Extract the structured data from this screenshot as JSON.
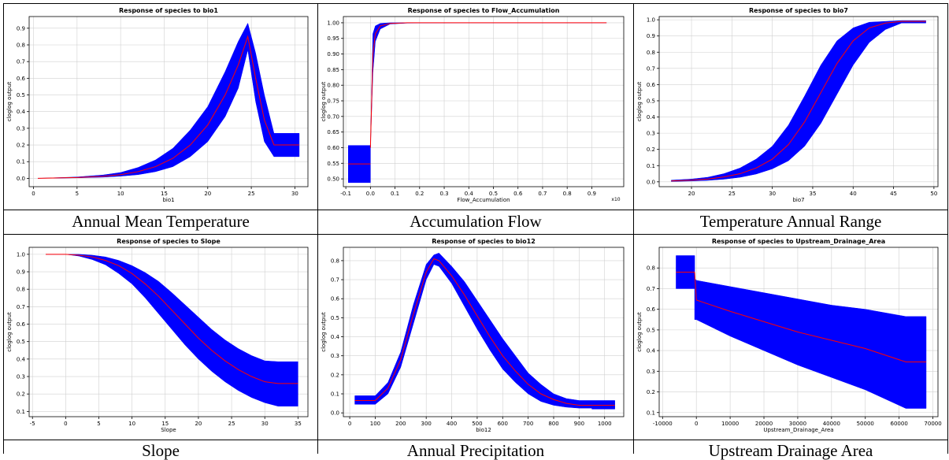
{
  "colors": {
    "band": "#0000ff",
    "line": "#ff0000",
    "grid": "#d0d0d0"
  },
  "panels": [
    {
      "caption": "Annual Mean Temperature",
      "chart_data": {
        "type": "area",
        "title": "Response of species to bio1",
        "xlabel": "bio1",
        "ylabel": "cloglog output",
        "xlim": [
          -0.5,
          31.5
        ],
        "ylim": [
          -0.05,
          0.97
        ],
        "xticks": [
          0,
          5,
          10,
          15,
          20,
          25,
          30
        ],
        "yticks": [
          0,
          0.1,
          0.2,
          0.3,
          0.4,
          0.5,
          0.6,
          0.7,
          0.8,
          0.9
        ],
        "yticklabels": [
          "0.0",
          "0.1",
          "0.2",
          "0.3",
          "0.4",
          "0.5",
          "0.6",
          "0.7",
          "0.8",
          "0.9"
        ],
        "series": [
          {
            "x": [
              0.5,
              5,
              8,
              10,
              12,
              14,
              16,
              18,
              20,
              22,
              23.5,
              24.6,
              25.5,
              26.5,
              27.6
            ],
            "mean": [
              0.0,
              0.005,
              0.012,
              0.022,
              0.04,
              0.07,
              0.12,
              0.2,
              0.32,
              0.5,
              0.68,
              0.85,
              0.6,
              0.35,
              0.2
            ],
            "upper": [
              0.0,
              0.008,
              0.02,
              0.035,
              0.065,
              0.11,
              0.18,
              0.29,
              0.43,
              0.64,
              0.82,
              0.93,
              0.75,
              0.5,
              0.27
            ],
            "lower": [
              0.0,
              0.003,
              0.007,
              0.013,
              0.022,
              0.04,
              0.07,
              0.13,
              0.22,
              0.37,
              0.54,
              0.77,
              0.46,
              0.22,
              0.13
            ]
          },
          {
            "x": [
              27.6,
              30.5
            ],
            "mean": [
              0.2,
              0.2
            ],
            "upper": [
              0.27,
              0.27
            ],
            "lower": [
              0.13,
              0.13
            ]
          }
        ]
      }
    },
    {
      "caption": "Accumulation Flow",
      "chart_data": {
        "type": "area",
        "title": "Response of species to Flow_Accumulation",
        "xlabel": "Flow_Accumulation",
        "ylabel": "cloglog output",
        "xmultiplier": "x10",
        "xlim": [
          -0.11,
          1.03
        ],
        "ylim": [
          0.475,
          1.02
        ],
        "xticks": [
          -0.1,
          0,
          0.1,
          0.2,
          0.3,
          0.4,
          0.5,
          0.6,
          0.7,
          0.8,
          0.9
        ],
        "xticklabels": [
          "-0.1",
          "0.0",
          "0.1",
          "0.2",
          "0.3",
          "0.4",
          "0.5",
          "0.6",
          "0.7",
          "0.8",
          "0.9"
        ],
        "yticks": [
          0.5,
          0.55,
          0.6,
          0.65,
          0.7,
          0.75,
          0.8,
          0.85,
          0.9,
          0.95,
          1.0
        ],
        "yticklabels": [
          "0.50",
          "0.55",
          "0.60",
          "0.65",
          "0.70",
          "0.75",
          "0.80",
          "0.85",
          "0.90",
          "0.95",
          "1.00"
        ],
        "series": [
          {
            "x": [
              -0.09,
              0.0
            ],
            "mean": [
              0.548,
              0.548
            ],
            "upper": [
              0.607,
              0.607
            ],
            "lower": [
              0.488,
              0.488
            ]
          },
          {
            "x": [
              0.0,
              0.01,
              0.02,
              0.04,
              0.08,
              0.15,
              0.4,
              0.96
            ],
            "mean": [
              0.6,
              0.9,
              0.965,
              0.99,
              0.998,
              1.0,
              1.0,
              1.0
            ],
            "upper": [
              0.6,
              0.965,
              0.99,
              0.998,
              1.0,
              1.0,
              1.0,
              1.0
            ],
            "lower": [
              0.6,
              0.84,
              0.94,
              0.98,
              0.996,
              0.999,
              1.0,
              1.0
            ]
          }
        ]
      }
    },
    {
      "caption": "Temperature Annual Range",
      "chart_data": {
        "type": "area",
        "title": "Response of species to bio7",
        "xlabel": "bio7",
        "ylabel": "cloglog output",
        "xlim": [
          16,
          50.5
        ],
        "ylim": [
          -0.03,
          1.02
        ],
        "xticks": [
          20,
          25,
          30,
          35,
          40,
          45,
          50
        ],
        "yticks": [
          0,
          0.1,
          0.2,
          0.3,
          0.4,
          0.5,
          0.6,
          0.7,
          0.8,
          0.9,
          1.0
        ],
        "yticklabels": [
          "0.0",
          "0.1",
          "0.2",
          "0.3",
          "0.4",
          "0.5",
          "0.6",
          "0.7",
          "0.8",
          "0.9",
          "1.0"
        ],
        "series": [
          {
            "x": [
              17.5,
              20,
              22,
              24,
              26,
              28,
              30,
              32,
              34,
              36,
              38,
              40,
              42,
              44,
              46,
              49
            ],
            "mean": [
              0.005,
              0.01,
              0.017,
              0.03,
              0.05,
              0.085,
              0.14,
              0.23,
              0.37,
              0.55,
              0.73,
              0.87,
              0.95,
              0.98,
              0.99,
              0.99
            ],
            "upper": [
              0.01,
              0.017,
              0.028,
              0.05,
              0.085,
              0.14,
              0.22,
              0.35,
              0.53,
              0.72,
              0.87,
              0.95,
              0.985,
              0.99,
              0.995,
              0.995
            ],
            "lower": [
              0.002,
              0.005,
              0.009,
              0.016,
              0.028,
              0.048,
              0.08,
              0.13,
              0.22,
              0.36,
              0.54,
              0.72,
              0.86,
              0.94,
              0.98,
              0.98
            ]
          }
        ]
      }
    },
    {
      "caption": "Slope",
      "chart_data": {
        "type": "area",
        "title": "Response of species to Slope",
        "xlabel": "Slope",
        "ylabel": "cloglog output",
        "xlim": [
          -5.5,
          36.5
        ],
        "ylim": [
          0.07,
          1.04
        ],
        "xticks": [
          -5,
          0,
          5,
          10,
          15,
          20,
          25,
          30,
          35
        ],
        "yticks": [
          0.1,
          0.2,
          0.3,
          0.4,
          0.5,
          0.6,
          0.7,
          0.8,
          0.9,
          1.0
        ],
        "yticklabels": [
          "0.1",
          "0.2",
          "0.3",
          "0.4",
          "0.5",
          "0.6",
          "0.7",
          "0.8",
          "0.9",
          "1.0"
        ],
        "series": [
          {
            "x": [
              -3,
              0,
              2,
              4,
              6,
              8,
              10,
              12,
              14,
              16,
              18,
              20,
              22,
              24,
              26,
              28,
              30,
              32,
              35
            ],
            "mean": [
              1.0,
              1.0,
              0.995,
              0.985,
              0.965,
              0.935,
              0.89,
              0.83,
              0.76,
              0.68,
              0.6,
              0.52,
              0.45,
              0.39,
              0.34,
              0.3,
              0.27,
              0.26,
              0.26
            ],
            "upper": [
              1.0,
              1.0,
              1.0,
              0.995,
              0.985,
              0.965,
              0.935,
              0.895,
              0.845,
              0.78,
              0.71,
              0.64,
              0.57,
              0.51,
              0.46,
              0.42,
              0.39,
              0.385,
              0.385
            ],
            "lower": [
              1.0,
              1.0,
              0.99,
              0.97,
              0.94,
              0.89,
              0.83,
              0.75,
              0.66,
              0.57,
              0.48,
              0.4,
              0.33,
              0.27,
              0.22,
              0.18,
              0.15,
              0.13,
              0.13
            ]
          }
        ]
      }
    },
    {
      "caption": "Annual Precipitation",
      "chart_data": {
        "type": "area",
        "title": "Response of species to bio12",
        "xlabel": "bio12",
        "ylabel": "cloglog output",
        "xlim": [
          -25,
          1075
        ],
        "ylim": [
          -0.02,
          0.87
        ],
        "xticks": [
          0,
          100,
          200,
          300,
          400,
          500,
          600,
          700,
          800,
          900,
          1000
        ],
        "yticks": [
          0,
          0.1,
          0.2,
          0.3,
          0.4,
          0.5,
          0.6,
          0.7,
          0.8
        ],
        "yticklabels": [
          "0.0",
          "0.1",
          "0.2",
          "0.3",
          "0.4",
          "0.5",
          "0.6",
          "0.7",
          "0.8"
        ],
        "series": [
          {
            "x": [
              20,
              100
            ],
            "mean": [
              0.065,
              0.065
            ],
            "upper": [
              0.09,
              0.09
            ],
            "lower": [
              0.045,
              0.045
            ]
          },
          {
            "x": [
              100,
              150,
              200,
              250,
              300,
              330,
              350,
              400,
              450,
              500,
              550,
              600,
              650,
              700,
              750,
              800,
              850,
              900,
              950
            ],
            "mean": [
              0.065,
              0.13,
              0.28,
              0.52,
              0.74,
              0.81,
              0.8,
              0.72,
              0.62,
              0.51,
              0.4,
              0.3,
              0.22,
              0.15,
              0.1,
              0.07,
              0.05,
              0.04,
              0.04
            ],
            "upper": [
              0.09,
              0.16,
              0.32,
              0.57,
              0.78,
              0.83,
              0.84,
              0.77,
              0.69,
              0.59,
              0.49,
              0.39,
              0.3,
              0.21,
              0.15,
              0.1,
              0.075,
              0.065,
              0.065
            ],
            "lower": [
              0.045,
              0.1,
              0.24,
              0.47,
              0.7,
              0.78,
              0.77,
              0.68,
              0.56,
              0.44,
              0.33,
              0.23,
              0.16,
              0.1,
              0.06,
              0.04,
              0.03,
              0.025,
              0.025
            ]
          },
          {
            "x": [
              950,
              1040
            ],
            "mean": [
              0.04,
              0.04
            ],
            "upper": [
              0.065,
              0.065
            ],
            "lower": [
              0.02,
              0.02
            ]
          }
        ]
      }
    },
    {
      "caption": "Upstream Drainage Area",
      "chart_data": {
        "type": "area",
        "title": "Response of species to Upstream_Drainage_Area",
        "xlabel": "Upstream_Drainage_Area",
        "ylabel": "cloglog output",
        "xlim": [
          -11000,
          71500
        ],
        "ylim": [
          0.08,
          0.9
        ],
        "xticks": [
          -10000,
          0,
          10000,
          20000,
          30000,
          40000,
          50000,
          60000,
          70000
        ],
        "yticks": [
          0.1,
          0.2,
          0.3,
          0.4,
          0.5,
          0.6,
          0.7,
          0.8
        ],
        "yticklabels": [
          "0.1",
          "0.2",
          "0.3",
          "0.4",
          "0.5",
          "0.6",
          "0.7",
          "0.8"
        ],
        "series": [
          {
            "x": [
              -6000,
              -500
            ],
            "mean": [
              0.78,
              0.78
            ],
            "upper": [
              0.86,
              0.86
            ],
            "lower": [
              0.7,
              0.7
            ]
          },
          {
            "x": [
              -500,
              0,
              10000,
              20000,
              30000,
              40000,
              50000,
              62000,
              68000
            ],
            "mean": [
              0.78,
              0.645,
              0.59,
              0.54,
              0.49,
              0.45,
              0.41,
              0.345,
              0.345
            ],
            "upper": [
              0.75,
              0.74,
              0.71,
              0.68,
              0.65,
              0.62,
              0.6,
              0.565,
              0.565
            ],
            "lower": [
              0.55,
              0.55,
              0.47,
              0.4,
              0.33,
              0.27,
              0.21,
              0.12,
              0.12
            ]
          }
        ]
      }
    }
  ]
}
